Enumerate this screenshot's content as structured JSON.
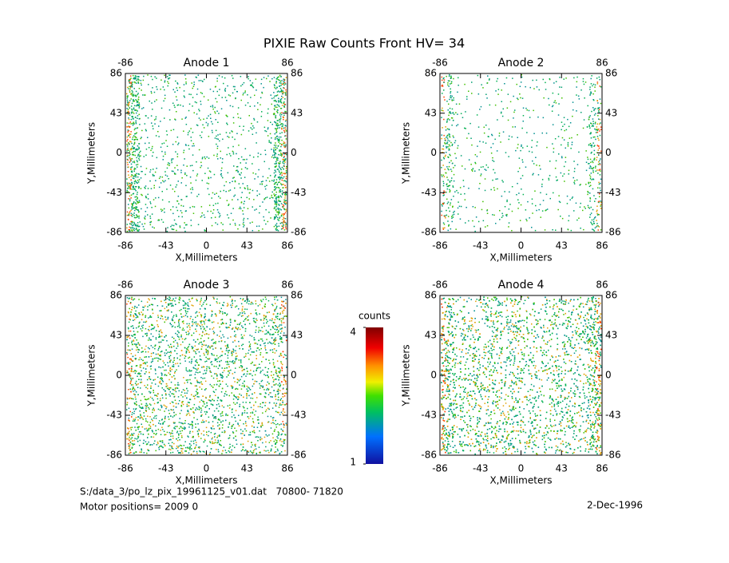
{
  "page_title": "PIXIE Raw Counts Front HV= 34",
  "chart_data": [
    {
      "type": "heatmap",
      "title": "Anode 1",
      "x_label": "X,Millimeters",
      "y_label": "Y,Millimeters",
      "xlim": [
        -86,
        86
      ],
      "ylim": [
        -86,
        86
      ],
      "xticks": [
        -86,
        -43,
        0,
        43,
        86
      ],
      "yticks": [
        -86,
        -43,
        0,
        43,
        86
      ]
    },
    {
      "type": "heatmap",
      "title": "Anode 2",
      "x_label": "X,Millimeters",
      "y_label": "Y,Millimeters",
      "xlim": [
        -86,
        86
      ],
      "ylim": [
        -86,
        86
      ],
      "xticks": [
        -86,
        -43,
        0,
        43,
        86
      ],
      "yticks": [
        -86,
        -43,
        0,
        43,
        86
      ]
    },
    {
      "type": "heatmap",
      "title": "Anode 3",
      "x_label": "X,Millimeters",
      "y_label": "Y,Millimeters",
      "xlim": [
        -86,
        86
      ],
      "ylim": [
        -86,
        86
      ],
      "xticks": [
        -86,
        -43,
        0,
        43,
        86
      ],
      "yticks": [
        -86,
        -43,
        0,
        43,
        86
      ]
    },
    {
      "type": "heatmap",
      "title": "Anode 4",
      "x_label": "X,Millimeters",
      "y_label": "Y,Millimeters",
      "xlim": [
        -86,
        86
      ],
      "ylim": [
        -86,
        86
      ],
      "xticks": [
        -86,
        -43,
        0,
        43,
        86
      ],
      "yticks": [
        -86,
        -43,
        0,
        43,
        86
      ]
    }
  ],
  "colorbar": {
    "label": "counts",
    "lim": [
      1,
      4
    ],
    "ticks": [
      1,
      4
    ]
  },
  "footer": {
    "file": "S:/data_3/po_lz_pix_19961125_v01.dat   70800- 71820",
    "motor": "Motor positions= 2009 0",
    "date": "2-Dec-1996"
  }
}
